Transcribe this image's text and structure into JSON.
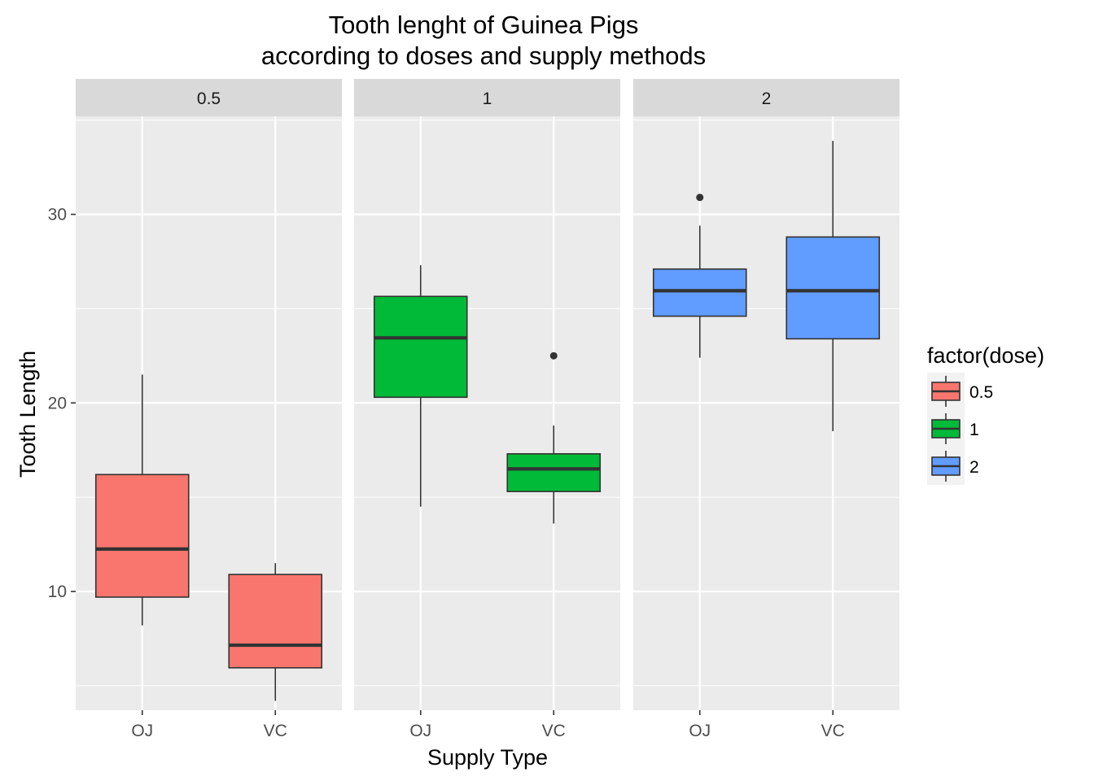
{
  "chart_data": {
    "type": "boxplot",
    "title_line1": "Tooth lenght of Guinea Pigs",
    "title_line2": "according to doses and supply methods",
    "xlabel": "Supply Type",
    "ylabel": "Tooth Length",
    "ylim": [
      3.7,
      35.2
    ],
    "yticks": [
      10,
      20,
      30
    ],
    "yticks_labels": [
      "10",
      "20",
      "30"
    ],
    "categories": [
      "OJ",
      "VC"
    ],
    "panels": [
      {
        "label": "0.5",
        "fill": "#F8766D",
        "boxes": [
          {
            "category": "OJ",
            "whisker_low": 8.2,
            "q1": 9.7,
            "median": 12.25,
            "q3": 16.2,
            "whisker_high": 21.5,
            "outliers": []
          },
          {
            "category": "VC",
            "whisker_low": 4.2,
            "q1": 5.95,
            "median": 7.15,
            "q3": 10.9,
            "whisker_high": 11.5,
            "outliers": []
          }
        ]
      },
      {
        "label": "1",
        "fill": "#00BA38",
        "boxes": [
          {
            "category": "OJ",
            "whisker_low": 14.5,
            "q1": 20.3,
            "median": 23.45,
            "q3": 25.65,
            "whisker_high": 27.3,
            "outliers": []
          },
          {
            "category": "VC",
            "whisker_low": 13.6,
            "q1": 15.3,
            "median": 16.5,
            "q3": 17.3,
            "whisker_high": 18.8,
            "outliers": [
              22.5
            ]
          }
        ]
      },
      {
        "label": "2",
        "fill": "#619CFF",
        "boxes": [
          {
            "category": "OJ",
            "whisker_low": 22.4,
            "q1": 24.6,
            "median": 25.95,
            "q3": 27.1,
            "whisker_high": 29.4,
            "outliers": [
              30.9
            ]
          },
          {
            "category": "VC",
            "whisker_low": 18.5,
            "q1": 23.4,
            "median": 25.95,
            "q3": 28.8,
            "whisker_high": 33.9,
            "outliers": []
          }
        ]
      }
    ],
    "legend": {
      "title": "factor(dose)",
      "position": "right",
      "items": [
        {
          "label": "0.5",
          "color": "#F8766D"
        },
        {
          "label": "1",
          "color": "#00BA38"
        },
        {
          "label": "2",
          "color": "#619CFF"
        }
      ]
    },
    "colors": {
      "panel_background": "#EBEBEB",
      "strip_background": "#D9D9D9",
      "grid": "#FFFFFF",
      "box_outline": "#333333"
    },
    "grid": true
  }
}
